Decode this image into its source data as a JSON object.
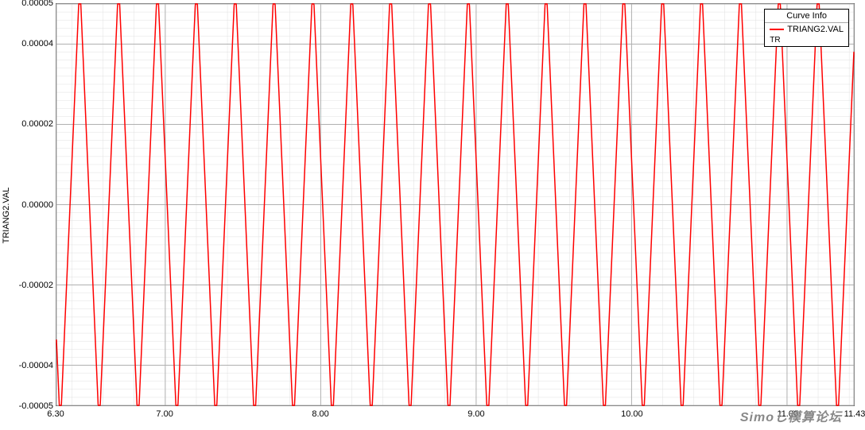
{
  "chart": {
    "type": "line",
    "ylabel": "TRIANG2.VAL",
    "xlim": [
      6.3,
      11.43
    ],
    "ylim": [
      -5e-05,
      5e-05
    ],
    "xticks": [
      6.3,
      7.0,
      8.0,
      9.0,
      10.0,
      11.0,
      11.43
    ],
    "xtick_labels": [
      "6.30",
      "7.00",
      "8.00",
      "9.00",
      "10.00",
      "11.00",
      "11.43"
    ],
    "yticks": [
      -5e-05,
      -4e-05,
      -2e-05,
      0.0,
      2e-05,
      4e-05,
      5e-05
    ],
    "ytick_labels": [
      "-0.00005",
      "-0.00004",
      "-0.00002",
      "0.00000",
      "0.00002",
      "0.00004",
      "0.00005"
    ],
    "x_minor_step": 0.2,
    "y_minor_count": 50,
    "grid_major_color": "#b0b0b0",
    "grid_minor_color": "#e0e0e0",
    "background_color": "#ffffff",
    "axis_color": "#666666",
    "series": {
      "name": "TRIANG2.VAL",
      "sub": "TR",
      "color": "#ff0000",
      "line_width": 1.5,
      "waveform": "triangle",
      "amplitude": 5e-05,
      "period": 0.25,
      "phase_peak_x": 6.45,
      "clip_fraction": 0.06
    },
    "legend": {
      "title": "Curve Info",
      "position": "top-right"
    }
  },
  "watermark": "Simoし模算论坛"
}
